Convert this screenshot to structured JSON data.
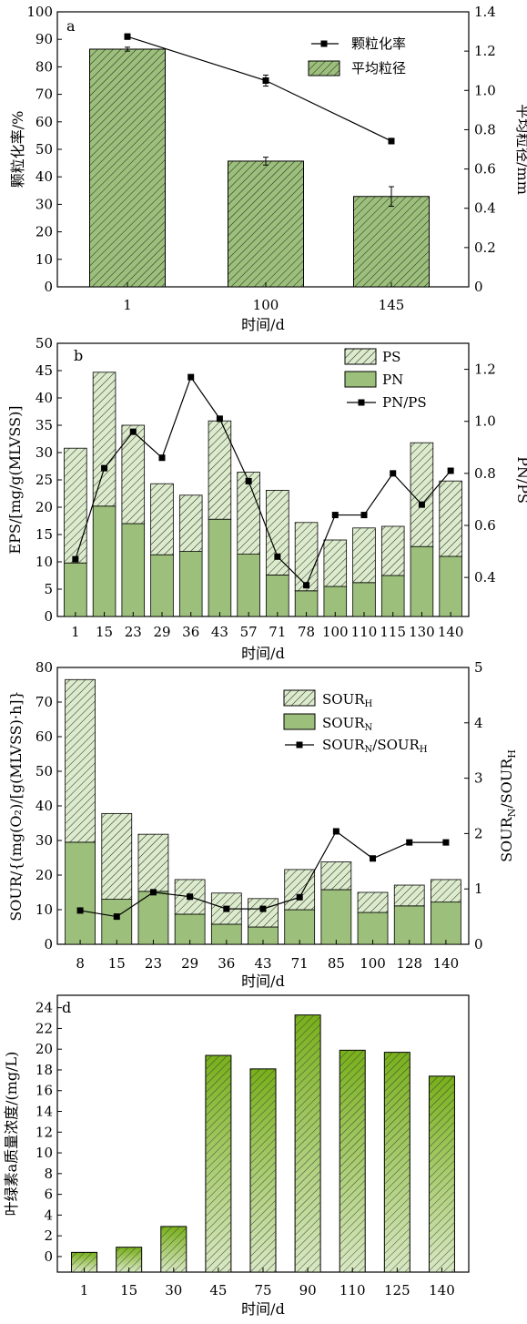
{
  "colors": {
    "bar_fill": "#9cc07b",
    "hatch_fill": "#dcebcc",
    "line": "#000000",
    "gradient_top": "#78b01a",
    "gradient_bottom": "#d8e8c3"
  },
  "chart_data": [
    {
      "type": "bar",
      "panel_label": "a",
      "categories": [
        "1",
        "100",
        "145"
      ],
      "xlabel": "时间/d",
      "ylabel_left": "颗粒化率/%",
      "ylabel_right": "平均粒径/mm",
      "ylim_left": [
        0,
        100
      ],
      "yticks_left": [
        "0",
        "10",
        "20",
        "30",
        "40",
        "50",
        "60",
        "70",
        "80",
        "90",
        "100"
      ],
      "ylim_right": [
        0,
        1.4
      ],
      "yticks_right": [
        "0",
        "0.2",
        "0.4",
        "0.6",
        "0.8",
        "1.0",
        "1.2",
        "1.4"
      ],
      "legend_position": "top-right",
      "series": [
        {
          "name": "颗粒化率",
          "type": "line",
          "axis": "left",
          "values": [
            91,
            75,
            53
          ],
          "errors": [
            1,
            2,
            1
          ]
        },
        {
          "name": "平均粒径",
          "type": "bar",
          "axis": "right",
          "values": [
            1.21,
            0.64,
            0.46
          ],
          "errors": [
            0.01,
            0.02,
            0.05
          ]
        }
      ]
    },
    {
      "type": "bar",
      "panel_label": "b",
      "categories": [
        "1",
        "15",
        "23",
        "29",
        "36",
        "43",
        "57",
        "71",
        "78",
        "100",
        "110",
        "115",
        "130",
        "140"
      ],
      "xlabel": "时间/d",
      "ylabel_left": "EPS/[mg/g(MLVSS)]",
      "ylabel_right": "PN/PS",
      "ylim_left": [
        0,
        50
      ],
      "yticks_left": [
        "0",
        "5",
        "10",
        "15",
        "20",
        "25",
        "30",
        "35",
        "40",
        "45",
        "50"
      ],
      "ylim_right": [
        0.25,
        1.3
      ],
      "yticks_right": [
        "0.4",
        "0.6",
        "0.8",
        "1.0",
        "1.2"
      ],
      "legend_position": "top-right",
      "series": [
        {
          "name": "PS",
          "type": "stacked-bar",
          "axis": "left",
          "values": [
            21,
            24.5,
            18,
            13,
            10.3,
            18,
            15,
            15.5,
            12.5,
            8.5,
            10,
            9,
            19,
            13.8
          ]
        },
        {
          "name": "PN",
          "type": "stacked-bar",
          "axis": "left",
          "values": [
            9.8,
            20.2,
            17,
            11.3,
            11.9,
            17.8,
            11.4,
            7.6,
            4.7,
            5.5,
            6.2,
            7.5,
            12.8,
            11
          ]
        },
        {
          "name": "PN/PS",
          "type": "line",
          "axis": "right",
          "values": [
            0.47,
            0.82,
            0.96,
            0.86,
            1.17,
            1.01,
            0.77,
            0.48,
            0.37,
            0.64,
            0.64,
            0.8,
            0.68,
            0.81
          ]
        }
      ]
    },
    {
      "type": "bar",
      "panel_label": "c",
      "categories": [
        "8",
        "15",
        "23",
        "29",
        "36",
        "43",
        "71",
        "85",
        "100",
        "128",
        "140"
      ],
      "xlabel": "时间/d",
      "ylabel_left": "SOUR/{(mg(O₂)/[g(MLVSS)·h]}",
      "ylabel_right_main": "SOUR",
      "ylabel_right_sub1": "N",
      "ylabel_right_mid": "/SOUR",
      "ylabel_right_sub2": "H",
      "ylim_left": [
        0,
        80
      ],
      "yticks_left": [
        "0",
        "10",
        "20",
        "30",
        "40",
        "50",
        "60",
        "70",
        "80"
      ],
      "ylim_right": [
        0,
        5
      ],
      "yticks_right": [
        "0",
        "1",
        "2",
        "3",
        "4",
        "5"
      ],
      "legend_position": "top-right",
      "legend": [
        {
          "main": "SOUR",
          "sub": "H",
          "tail": "",
          "sub2": ""
        },
        {
          "main": "SOUR",
          "sub": "N",
          "tail": "",
          "sub2": ""
        },
        {
          "main": "SOUR",
          "sub": "N",
          "tail": "/SOUR",
          "sub2": "H"
        }
      ],
      "series": [
        {
          "name": "SOURH",
          "type": "stacked-bar",
          "axis": "left",
          "values": [
            47,
            24.8,
            16.5,
            10,
            9,
            8.2,
            11.6,
            8,
            5.8,
            6,
            6.5
          ]
        },
        {
          "name": "SOURN",
          "type": "stacked-bar",
          "axis": "left",
          "values": [
            29.5,
            13,
            15.3,
            8.7,
            5.8,
            5,
            10,
            15.8,
            9.2,
            11.1,
            12.2
          ]
        },
        {
          "name": "SOURN/SOURH",
          "type": "line",
          "axis": "right",
          "values": [
            0.61,
            0.5,
            0.94,
            0.86,
            0.64,
            0.64,
            0.85,
            2.04,
            1.55,
            1.84,
            1.84
          ]
        }
      ]
    },
    {
      "type": "bar",
      "panel_label": "d",
      "categories": [
        "1",
        "15",
        "30",
        "45",
        "75",
        "90",
        "110",
        "125",
        "140"
      ],
      "xlabel": "时间/d",
      "ylabel": "叶绿素a质量浓度/(mg/L)",
      "ylim": [
        -1.5,
        25.2
      ],
      "yticks": [
        "0",
        "2",
        "4",
        "6",
        "8",
        "10",
        "12",
        "14",
        "16",
        "18",
        "20",
        "22",
        "24"
      ],
      "values": [
        0.4,
        0.9,
        2.9,
        19.4,
        18.1,
        23.3,
        19.9,
        19.7,
        17.4
      ]
    }
  ]
}
